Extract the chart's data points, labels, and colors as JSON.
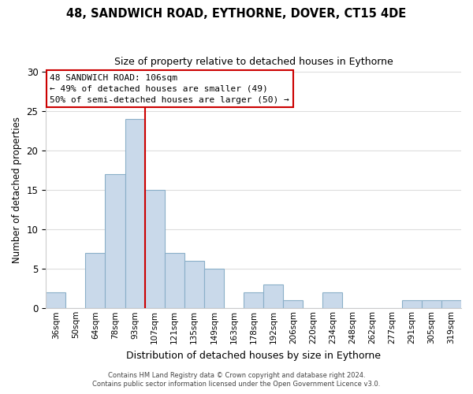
{
  "title": "48, SANDWICH ROAD, EYTHORNE, DOVER, CT15 4DE",
  "subtitle": "Size of property relative to detached houses in Eythorne",
  "xlabel": "Distribution of detached houses by size in Eythorne",
  "ylabel": "Number of detached properties",
  "bar_labels": [
    "36sqm",
    "50sqm",
    "64sqm",
    "78sqm",
    "93sqm",
    "107sqm",
    "121sqm",
    "135sqm",
    "149sqm",
    "163sqm",
    "178sqm",
    "192sqm",
    "206sqm",
    "220sqm",
    "234sqm",
    "248sqm",
    "262sqm",
    "277sqm",
    "291sqm",
    "305sqm",
    "319sqm"
  ],
  "bar_values": [
    2,
    0,
    7,
    17,
    24,
    15,
    7,
    6,
    5,
    0,
    2,
    3,
    1,
    0,
    2,
    0,
    0,
    0,
    1,
    1,
    1
  ],
  "bar_color": "#c9d9ea",
  "bar_edge_color": "#8aafc8",
  "vline_x_index": 5,
  "vline_color": "#cc0000",
  "annotation_title": "48 SANDWICH ROAD: 106sqm",
  "annotation_line1": "← 49% of detached houses are smaller (49)",
  "annotation_line2": "50% of semi-detached houses are larger (50) →",
  "annotation_box_color": "#ffffff",
  "annotation_border_color": "#cc0000",
  "ylim": [
    0,
    30
  ],
  "yticks": [
    0,
    5,
    10,
    15,
    20,
    25,
    30
  ],
  "footer1": "Contains HM Land Registry data © Crown copyright and database right 2024.",
  "footer2": "Contains public sector information licensed under the Open Government Licence v3.0.",
  "bg_color": "#ffffff",
  "grid_color": "#dddddd"
}
